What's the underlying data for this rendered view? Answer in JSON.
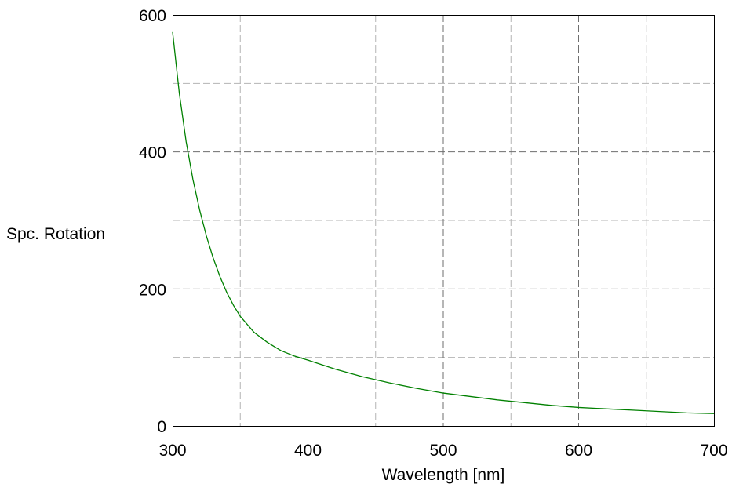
{
  "chart_data": {
    "type": "line",
    "title": "",
    "xlabel": "Wavelength [nm]",
    "ylabel": "Spc. Rotation",
    "xlim": [
      300,
      700
    ],
    "ylim": [
      0,
      600
    ],
    "x_ticks": [
      300,
      400,
      500,
      600,
      700
    ],
    "y_ticks": [
      0,
      200,
      400,
      600
    ],
    "x_minor_grid": [
      350,
      450,
      550,
      650
    ],
    "y_minor_grid": [
      100,
      300,
      500
    ],
    "grid": true,
    "legend": "none",
    "series": [
      {
        "color": "#008000",
        "x": [
          300,
          305,
          310,
          315,
          320,
          325,
          330,
          335,
          340,
          345,
          350,
          360,
          370,
          380,
          390,
          400,
          420,
          440,
          460,
          480,
          500,
          520,
          540,
          560,
          580,
          600,
          620,
          640,
          660,
          680,
          700
        ],
        "y": [
          575,
          485,
          415,
          360,
          315,
          277,
          245,
          218,
          195,
          176,
          160,
          137,
          122,
          110,
          102,
          96,
          83,
          72,
          63,
          55,
          48,
          43,
          38,
          34,
          30,
          27,
          25,
          23,
          21,
          19,
          18
        ]
      }
    ]
  }
}
